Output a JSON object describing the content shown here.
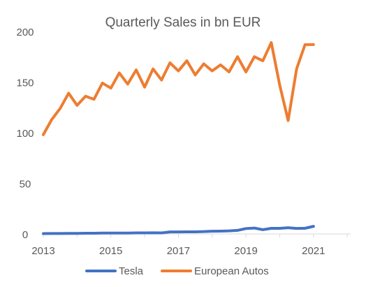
{
  "chart_data": {
    "type": "line",
    "title": "Quarterly Sales in bn EUR",
    "xlabel": "",
    "ylabel": "",
    "xlim": [
      2013,
      2022.1
    ],
    "ylim": [
      0,
      200
    ],
    "x_ticks": [
      "2013",
      "2015",
      "2017",
      "2019",
      "2021"
    ],
    "y_ticks": [
      "0",
      "50",
      "100",
      "150",
      "200"
    ],
    "grid": false,
    "legend": "bottom",
    "x": [
      2013.0,
      2013.25,
      2013.5,
      2013.75,
      2014.0,
      2014.25,
      2014.5,
      2014.75,
      2015.0,
      2015.25,
      2015.5,
      2015.75,
      2016.0,
      2016.25,
      2016.5,
      2016.75,
      2017.0,
      2017.25,
      2017.5,
      2017.75,
      2018.0,
      2018.25,
      2018.5,
      2018.75,
      2019.0,
      2019.25,
      2019.5,
      2019.75,
      2020.0,
      2020.25,
      2020.5,
      2020.75,
      2021.0
    ],
    "series": [
      {
        "name": "Tesla",
        "color": "#4472C4",
        "values": [
          0.3,
          0.4,
          0.4,
          0.5,
          0.5,
          0.7,
          0.7,
          0.9,
          0.9,
          0.9,
          0.9,
          1.0,
          1.0,
          1.1,
          1.0,
          2.0,
          2.0,
          2.1,
          2.1,
          2.3,
          2.7,
          2.8,
          3.0,
          3.5,
          5.3,
          5.8,
          4.2,
          5.5,
          5.5,
          6.1,
          5.4,
          5.6,
          7.5
        ]
      },
      {
        "name": "European Autos",
        "color": "#ED7D31",
        "values": [
          98,
          113,
          124,
          139,
          127,
          136,
          133,
          149,
          144,
          159,
          148,
          162,
          145,
          163,
          152,
          169,
          161,
          171,
          157,
          168,
          161,
          167,
          160,
          175,
          160,
          175,
          171,
          189,
          147,
          112,
          163,
          187,
          187
        ]
      }
    ]
  }
}
